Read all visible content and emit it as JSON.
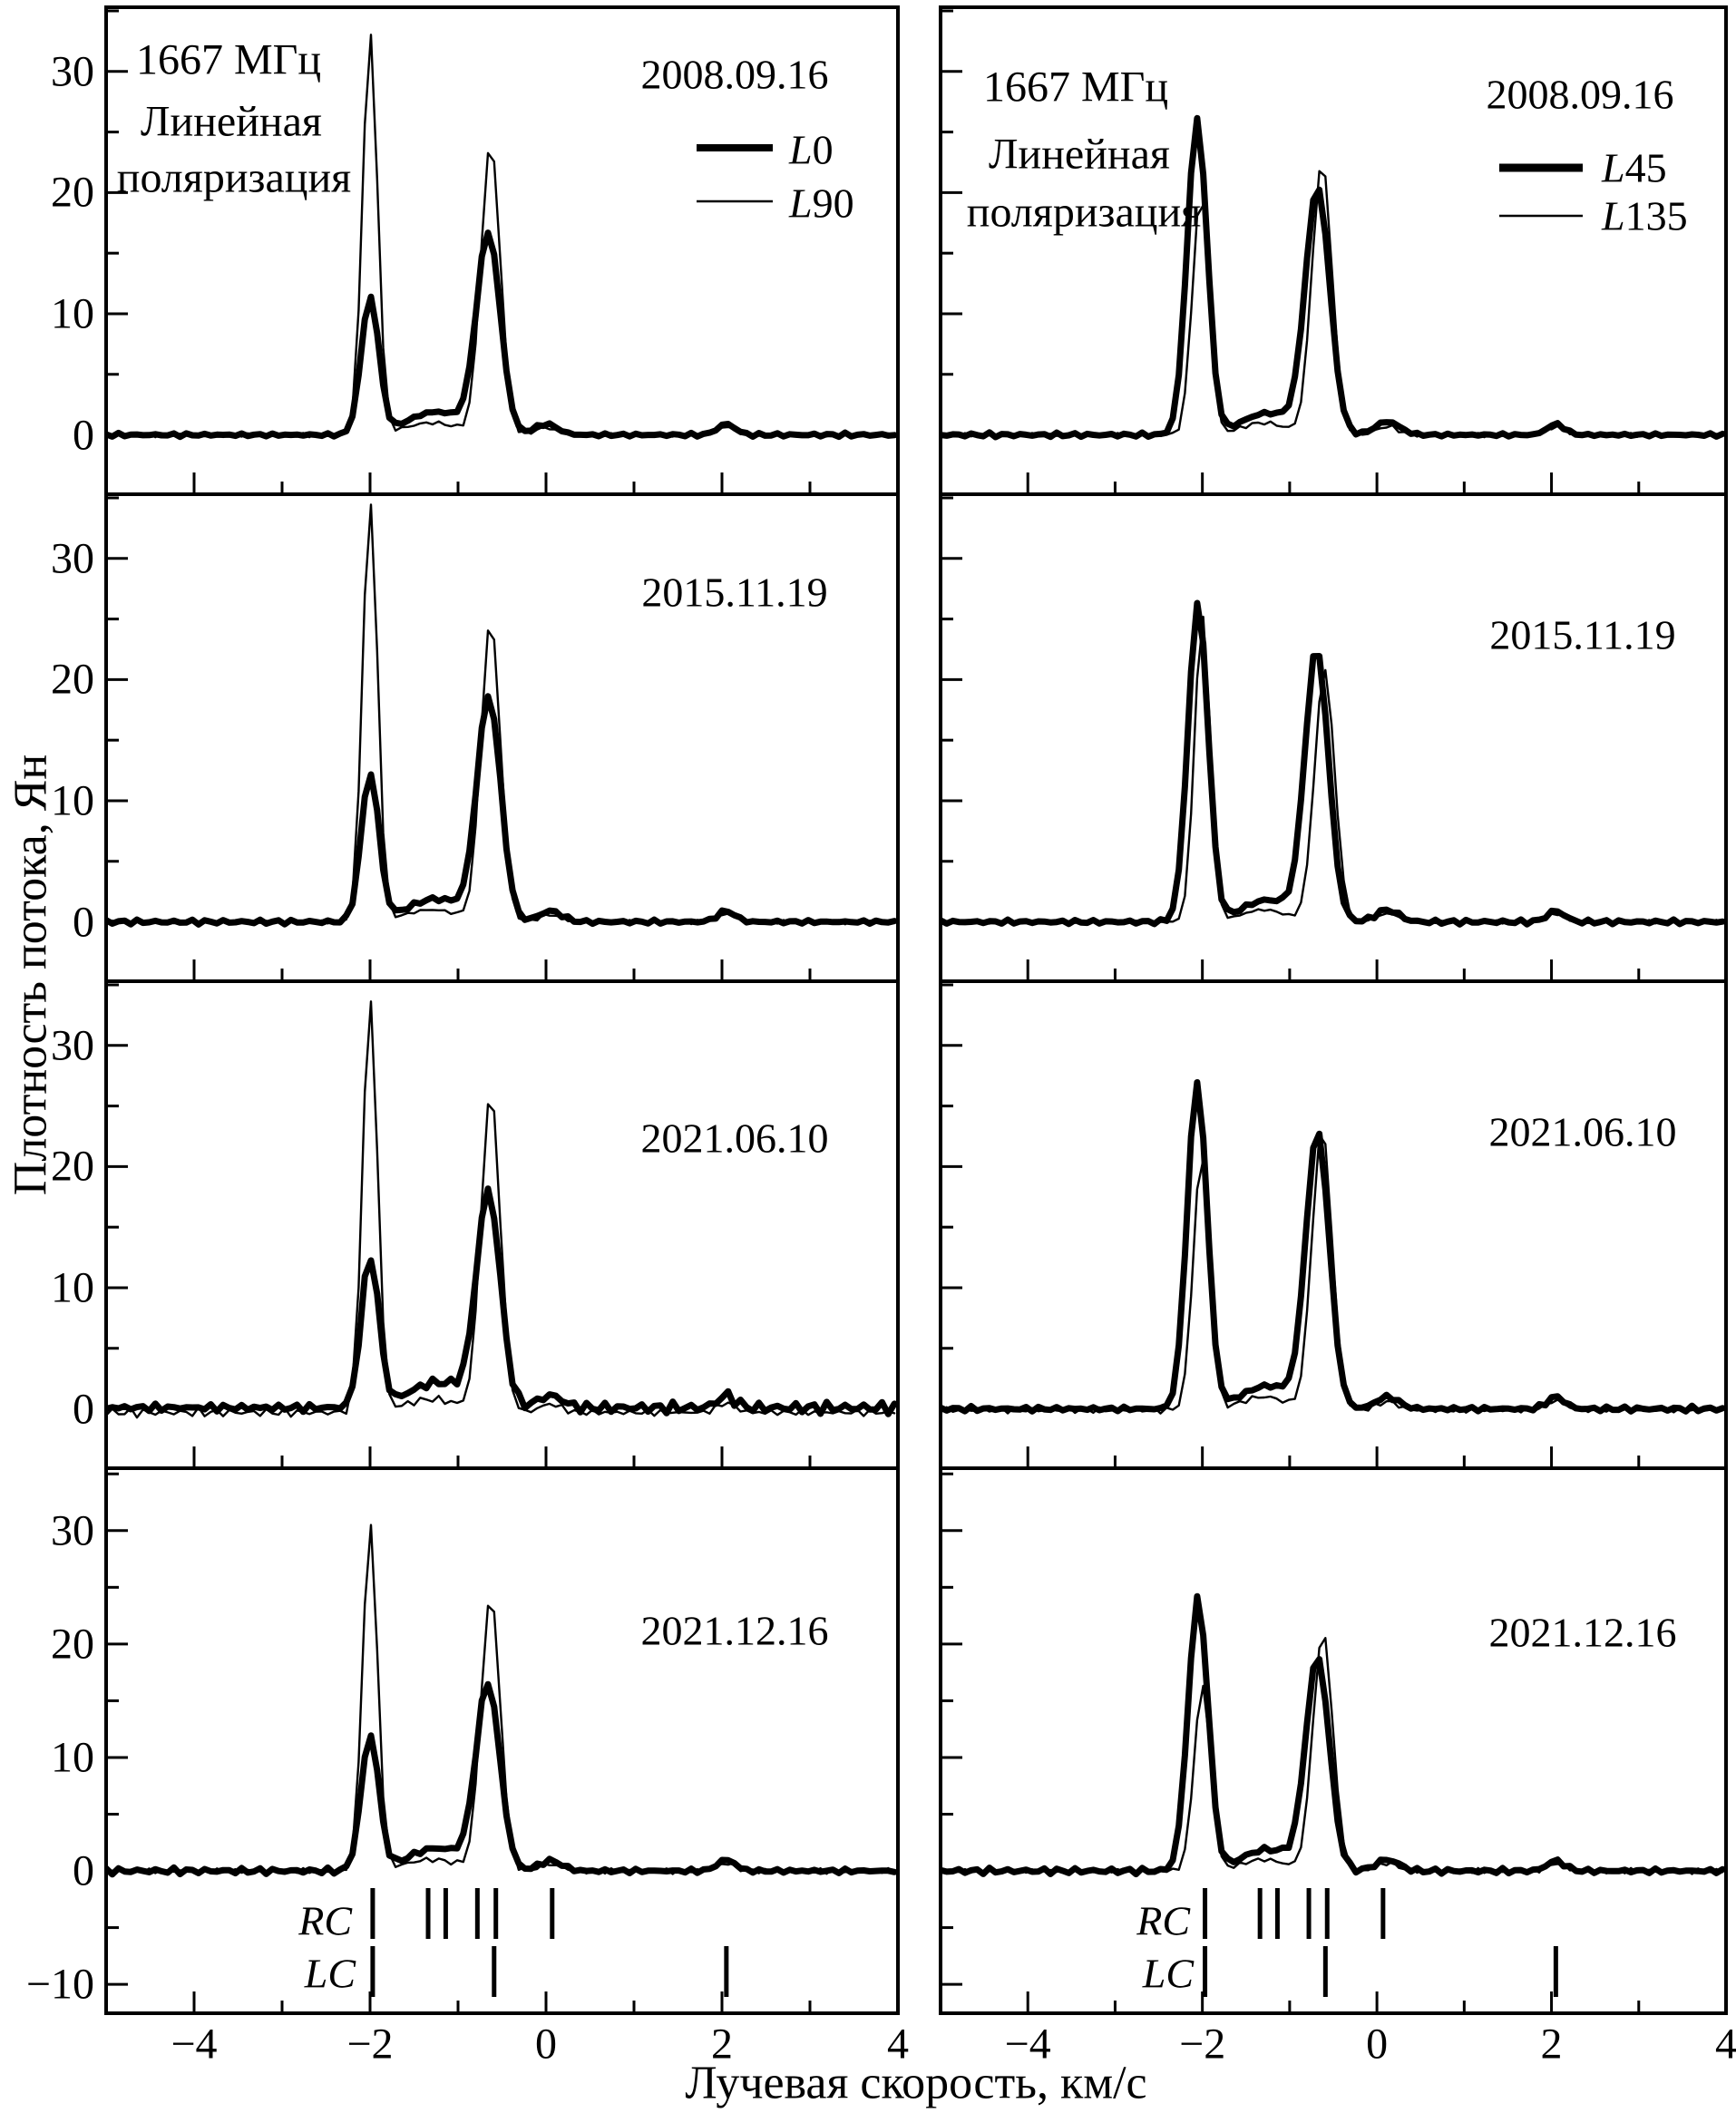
{
  "figure": {
    "y_title": "Плотность потока, Ян",
    "x_title": "Лучевая скорость, км/с",
    "header": {
      "frequency": "1667 МГц",
      "polarization_line1": "Линейная",
      "polarization_line2": "поляризация"
    }
  },
  "axes": {
    "x_range": [
      -5,
      4
    ],
    "x_tick_step": 1,
    "x_major_ticks": [
      -4,
      -2,
      0,
      2,
      4
    ],
    "x_tick_labels": [
      "−4",
      "−2",
      "0",
      "2",
      "4"
    ],
    "y_rows123_range": [
      -4.9,
      35.3
    ],
    "y_row4_range": [
      -12.55,
      35.5
    ],
    "y_tick_step": 5,
    "y_labels_rows123": [
      "30",
      "20",
      "10",
      "0"
    ],
    "y_label_values_rows123": [
      30,
      20,
      10,
      0
    ],
    "y_labels_row4": [
      "30",
      "20",
      "10",
      "0",
      "−10"
    ],
    "y_label_values_row4": [
      30,
      20,
      10,
      0,
      -10
    ],
    "grid": false
  },
  "legends": {
    "left": {
      "items": [
        {
          "letter": "L",
          "number": "0",
          "weight": "thick"
        },
        {
          "letter": "L",
          "number": "90",
          "weight": "thin"
        }
      ]
    },
    "right": {
      "items": [
        {
          "letter": "L",
          "number": "45",
          "weight": "thick"
        },
        {
          "letter": "L",
          "number": "135",
          "weight": "thin"
        }
      ]
    }
  },
  "markers": {
    "rc_label": "RC",
    "lc_label": "LC",
    "rc_velocities": [
      -1.97,
      -1.34,
      -1.14,
      -0.78,
      -0.57,
      0.07
    ],
    "lc_velocities": [
      -1.97,
      -0.59,
      2.05
    ]
  },
  "chart_data": [
    {
      "type": "line",
      "row": 0,
      "col": "left",
      "date": "2008.09.16",
      "xlabel": "Лучевая скорость, км/с",
      "ylabel": "Плотность потока, Ян",
      "series": [
        {
          "name": "L0",
          "line": "thick",
          "noise_amp": 0.22,
          "baseline": 0,
          "peaks": [
            {
              "v": -2.0,
              "flux": 11.3
            },
            {
              "v": -0.66,
              "flux": 16.4
            }
          ],
          "components": [
            [
              -2.0,
              11.3,
              0.1
            ],
            [
              -0.655,
              16.4,
              0.135
            ],
            [
              -1.25,
              1.9,
              0.33
            ],
            [
              0.0,
              0.9,
              0.13
            ],
            [
              2.05,
              0.9,
              0.1
            ]
          ]
        },
        {
          "name": "L90",
          "line": "thin",
          "noise_amp": 0.2,
          "baseline": 0,
          "peaks": [
            {
              "v": -2.0,
              "flux": 33.0
            },
            {
              "v": -0.63,
              "flux": 24.0
            }
          ],
          "components": [
            [
              -2.0,
              33.0,
              0.085
            ],
            [
              -0.63,
              24.0,
              0.11
            ],
            [
              -1.3,
              1.0,
              0.3
            ],
            [
              0.0,
              0.6,
              0.12
            ],
            [
              2.05,
              0.7,
              0.1
            ]
          ]
        }
      ]
    },
    {
      "type": "line",
      "row": 0,
      "col": "right",
      "date": "2008.09.16",
      "series": [
        {
          "name": "L45",
          "line": "thick",
          "noise_amp": 0.22,
          "baseline": 0,
          "peaks": [
            {
              "v": -2.06,
              "flux": 26.0
            },
            {
              "v": -0.68,
              "flux": 20.2
            }
          ],
          "components": [
            [
              -2.06,
              26.0,
              0.115
            ],
            [
              -0.68,
              20.2,
              0.14
            ],
            [
              -1.25,
              1.8,
              0.3
            ],
            [
              0.12,
              1.1,
              0.14
            ],
            [
              2.05,
              0.9,
              0.1
            ]
          ]
        },
        {
          "name": "L135",
          "line": "thin",
          "noise_amp": 0.2,
          "baseline": 0,
          "peaks": [
            {
              "v": -2.02,
              "flux": 19.8
            },
            {
              "v": -0.63,
              "flux": 22.5
            }
          ],
          "components": [
            [
              -2.02,
              19.8,
              0.095
            ],
            [
              -0.63,
              22.5,
              0.115
            ],
            [
              -1.3,
              1.0,
              0.25
            ],
            [
              0.12,
              0.7,
              0.12
            ],
            [
              2.05,
              0.7,
              0.1
            ]
          ]
        }
      ]
    },
    {
      "type": "line",
      "row": 1,
      "col": "left",
      "date": "2015.11.19",
      "series": [
        {
          "name": "L0",
          "line": "thick",
          "noise_amp": 0.22,
          "baseline": 0,
          "peaks": [
            {
              "v": -2.0,
              "flux": 12.2
            },
            {
              "v": -0.65,
              "flux": 18.3
            }
          ],
          "components": [
            [
              -2.0,
              12.2,
              0.1
            ],
            [
              -0.65,
              18.3,
              0.135
            ],
            [
              -1.25,
              1.9,
              0.33
            ],
            [
              0.05,
              0.9,
              0.13
            ],
            [
              2.05,
              0.9,
              0.1
            ]
          ]
        },
        {
          "name": "L90",
          "line": "thin",
          "noise_amp": 0.2,
          "baseline": 0,
          "peaks": [
            {
              "v": -2.0,
              "flux": 34.6
            },
            {
              "v": -0.63,
              "flux": 24.8
            }
          ],
          "components": [
            [
              -2.0,
              34.6,
              0.085
            ],
            [
              -0.63,
              24.8,
              0.11
            ],
            [
              -1.3,
              1.0,
              0.3
            ],
            [
              0.05,
              0.6,
              0.12
            ],
            [
              2.05,
              0.7,
              0.1
            ]
          ]
        }
      ]
    },
    {
      "type": "line",
      "row": 1,
      "col": "right",
      "date": "2015.11.19",
      "series": [
        {
          "name": "L45",
          "line": "thick",
          "noise_amp": 0.22,
          "baseline": 0,
          "peaks": [
            {
              "v": -2.05,
              "flux": 26.3
            },
            {
              "v": -0.69,
              "flux": 22.3
            }
          ],
          "components": [
            [
              -2.05,
              26.3,
              0.115
            ],
            [
              -0.69,
              22.3,
              0.135
            ],
            [
              -1.25,
              1.8,
              0.3
            ],
            [
              0.12,
              1.0,
              0.13
            ],
            [
              2.05,
              0.9,
              0.1
            ]
          ]
        },
        {
          "name": "L135",
          "line": "thin",
          "noise_amp": 0.2,
          "baseline": 0,
          "peaks": [
            {
              "v": -2.0,
              "flux": 25.2
            },
            {
              "v": -0.6,
              "flux": 20.8
            }
          ],
          "components": [
            [
              -2.0,
              25.2,
              0.09
            ],
            [
              -0.6,
              20.8,
              0.115
            ],
            [
              -1.3,
              1.0,
              0.25
            ],
            [
              0.12,
              0.7,
              0.12
            ],
            [
              2.05,
              0.7,
              0.1
            ]
          ]
        }
      ]
    },
    {
      "type": "line",
      "row": 2,
      "col": "left",
      "date": "2021.06.10",
      "series": [
        {
          "name": "L0",
          "line": "thick",
          "noise_amp": 0.55,
          "baseline": 0.1,
          "peaks": [
            {
              "v": -2.0,
              "flux": 12.4
            },
            {
              "v": -0.66,
              "flux": 17.4
            }
          ],
          "components": [
            [
              -2.0,
              12.4,
              0.1
            ],
            [
              -0.655,
              17.4,
              0.135
            ],
            [
              -1.22,
              2.1,
              0.34
            ],
            [
              0.05,
              1.0,
              0.14
            ],
            [
              2.05,
              1.0,
              0.1
            ]
          ]
        },
        {
          "name": "L90",
          "line": "thin",
          "noise_amp": 0.45,
          "baseline": -0.3,
          "peaks": [
            {
              "v": -2.0,
              "flux": 33.6
            },
            {
              "v": -0.63,
              "flux": 26.0
            }
          ],
          "components": [
            [
              -2.0,
              33.9,
              0.085
            ],
            [
              -0.63,
              26.3,
              0.11
            ],
            [
              -1.3,
              1.1,
              0.3
            ],
            [
              0.05,
              0.7,
              0.12
            ],
            [
              2.05,
              0.8,
              0.1
            ]
          ]
        }
      ]
    },
    {
      "type": "line",
      "row": 2,
      "col": "right",
      "date": "2021.06.10",
      "series": [
        {
          "name": "L45",
          "line": "thick",
          "noise_amp": 0.3,
          "baseline": 0,
          "peaks": [
            {
              "v": -2.06,
              "flux": 26.9
            },
            {
              "v": -0.68,
              "flux": 22.6
            }
          ],
          "components": [
            [
              -2.06,
              26.9,
              0.115
            ],
            [
              -0.68,
              22.6,
              0.135
            ],
            [
              -1.25,
              1.9,
              0.3
            ],
            [
              0.12,
              1.0,
              0.13
            ],
            [
              2.05,
              1.0,
              0.1
            ]
          ]
        },
        {
          "name": "L135",
          "line": "thin",
          "noise_amp": 0.28,
          "baseline": -0.1,
          "peaks": [
            {
              "v": -2.01,
              "flux": 21.0
            },
            {
              "v": -0.63,
              "flux": 23.3
            }
          ],
          "components": [
            [
              -2.01,
              21.0,
              0.095
            ],
            [
              -0.63,
              23.3,
              0.115
            ],
            [
              -1.3,
              1.1,
              0.25
            ],
            [
              0.12,
              0.7,
              0.12
            ],
            [
              2.05,
              0.8,
              0.1
            ]
          ]
        }
      ]
    },
    {
      "type": "line",
      "row": 3,
      "col": "left",
      "date": "2021.12.16",
      "series": [
        {
          "name": "L0",
          "line": "thick",
          "noise_amp": 0.33,
          "baseline": 0,
          "peaks": [
            {
              "v": -2.0,
              "flux": 11.9
            },
            {
              "v": -0.66,
              "flux": 16.2
            }
          ],
          "components": [
            [
              -2.0,
              11.9,
              0.1
            ],
            [
              -0.66,
              16.2,
              0.135
            ],
            [
              -1.24,
              2.0,
              0.33
            ],
            [
              0.05,
              0.9,
              0.13
            ],
            [
              2.05,
              1.0,
              0.1
            ]
          ]
        },
        {
          "name": "L90",
          "line": "thin",
          "noise_amp": 0.28,
          "baseline": 0,
          "peaks": [
            {
              "v": -2.0,
              "flux": 30.4
            },
            {
              "v": -0.63,
              "flux": 24.2
            }
          ],
          "components": [
            [
              -2.0,
              30.4,
              0.085
            ],
            [
              -0.63,
              24.2,
              0.11
            ],
            [
              -1.3,
              1.0,
              0.3
            ],
            [
              0.05,
              0.6,
              0.12
            ],
            [
              2.05,
              0.7,
              0.1
            ]
          ]
        }
      ]
    },
    {
      "type": "line",
      "row": 3,
      "col": "right",
      "date": "2021.12.16",
      "series": [
        {
          "name": "L45",
          "line": "thick",
          "noise_amp": 0.3,
          "baseline": 0,
          "peaks": [
            {
              "v": -2.05,
              "flux": 24.0
            },
            {
              "v": -0.68,
              "flux": 18.6
            }
          ],
          "components": [
            [
              -2.05,
              24.0,
              0.115
            ],
            [
              -0.68,
              18.6,
              0.135
            ],
            [
              -1.25,
              1.9,
              0.3
            ],
            [
              0.12,
              1.0,
              0.13
            ],
            [
              2.05,
              0.9,
              0.1
            ]
          ]
        },
        {
          "name": "L135",
          "line": "thin",
          "noise_amp": 0.28,
          "baseline": 0,
          "peaks": [
            {
              "v": -2.0,
              "flux": 16.3
            },
            {
              "v": -0.62,
              "flux": 21.0
            }
          ],
          "components": [
            [
              -2.0,
              16.3,
              0.095
            ],
            [
              -0.62,
              21.0,
              0.115
            ],
            [
              -1.3,
              1.0,
              0.25
            ],
            [
              0.12,
              0.7,
              0.12
            ],
            [
              2.05,
              0.7,
              0.1
            ]
          ]
        }
      ]
    }
  ]
}
